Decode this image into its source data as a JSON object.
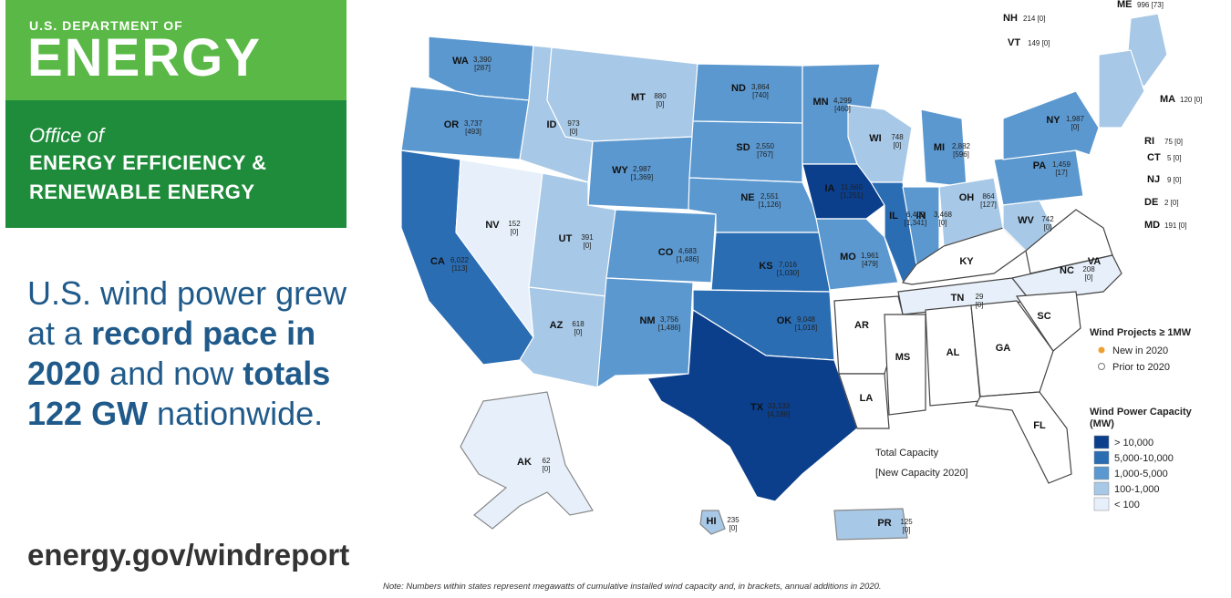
{
  "brand": {
    "department": "U.S. DEPARTMENT OF",
    "agency": "ENERGY",
    "office_of": "Office of",
    "office_line1": "ENERGY EFFICIENCY &",
    "office_line2": "RENEWABLE ENERGY",
    "color_light": "#5ab946",
    "color_dark": "#1e8c3a"
  },
  "headline": {
    "part1": "U.S. wind power grew at a ",
    "bold1": "record pace in 2020",
    "part2": " and now ",
    "bold2": "totals 122 GW",
    "part3": " nationwide."
  },
  "url": "energy.gov/windreport",
  "note": "Note: Numbers within states represent megawatts of cumulative installed wind capacity and, in brackets, annual additions in 2020.",
  "map": {
    "capacity_caption_line1": "Total Capacity",
    "capacity_caption_line2": "[New Capacity 2020]",
    "states": [
      {
        "abbr": "WA",
        "total": "3,390",
        "new": "[287]"
      },
      {
        "abbr": "OR",
        "total": "3,737",
        "new": "[493]"
      },
      {
        "abbr": "CA",
        "total": "6,022",
        "new": "[113]"
      },
      {
        "abbr": "ID",
        "total": "973",
        "new": "[0]"
      },
      {
        "abbr": "NV",
        "total": "152",
        "new": "[0]"
      },
      {
        "abbr": "MT",
        "total": "880",
        "new": "[0]"
      },
      {
        "abbr": "WY",
        "total": "2,987",
        "new": "[1,369]"
      },
      {
        "abbr": "UT",
        "total": "391",
        "new": "[0]"
      },
      {
        "abbr": "AZ",
        "total": "618",
        "new": "[0]"
      },
      {
        "abbr": "CO",
        "total": "4,683",
        "new": "[1,486]"
      },
      {
        "abbr": "NM",
        "total": "3,756",
        "new": "[1,486]"
      },
      {
        "abbr": "ND",
        "total": "3,864",
        "new": "[740]"
      },
      {
        "abbr": "SD",
        "total": "2,550",
        "new": "[767]"
      },
      {
        "abbr": "NE",
        "total": "2,551",
        "new": "[1,126]"
      },
      {
        "abbr": "KS",
        "total": "7,016",
        "new": "[1,030]"
      },
      {
        "abbr": "OK",
        "total": "9,048",
        "new": "[1,018]"
      },
      {
        "abbr": "TX",
        "total": "33,133",
        "new": "[4,186]"
      },
      {
        "abbr": "MN",
        "total": "4,299",
        "new": "[460]"
      },
      {
        "abbr": "IA",
        "total": "11,660",
        "new": "[1,251]"
      },
      {
        "abbr": "MO",
        "total": "1,961",
        "new": "[479]"
      },
      {
        "abbr": "WI",
        "total": "748",
        "new": "[0]"
      },
      {
        "abbr": "IL",
        "total": "6,409",
        "new": "[1,341]"
      },
      {
        "abbr": "MI",
        "total": "2,882",
        "new": "[596]"
      },
      {
        "abbr": "IN",
        "total": "3,468",
        "new": "[0]"
      },
      {
        "abbr": "OH",
        "total": "864",
        "new": "[127]"
      },
      {
        "abbr": "PA",
        "total": "1,459",
        "new": "[17]"
      },
      {
        "abbr": "NY",
        "total": "1,987",
        "new": "[0]"
      },
      {
        "abbr": "WV",
        "total": "742",
        "new": "[0]"
      },
      {
        "abbr": "VA",
        "total": "",
        "new": ""
      },
      {
        "abbr": "KY",
        "total": "",
        "new": ""
      },
      {
        "abbr": "TN",
        "total": "29",
        "new": "[0]"
      },
      {
        "abbr": "NC",
        "total": "208",
        "new": "[0]"
      },
      {
        "abbr": "SC",
        "total": "",
        "new": ""
      },
      {
        "abbr": "GA",
        "total": "",
        "new": ""
      },
      {
        "abbr": "AL",
        "total": "",
        "new": ""
      },
      {
        "abbr": "MS",
        "total": "",
        "new": ""
      },
      {
        "abbr": "AR",
        "total": "",
        "new": ""
      },
      {
        "abbr": "LA",
        "total": "",
        "new": ""
      },
      {
        "abbr": "FL",
        "total": "",
        "new": ""
      },
      {
        "abbr": "AK",
        "total": "62",
        "new": "[0]"
      },
      {
        "abbr": "HI",
        "total": "235",
        "new": "[0]"
      },
      {
        "abbr": "PR",
        "total": "125",
        "new": "[0]"
      }
    ],
    "ne_callouts": [
      {
        "abbr": "ME",
        "value": "996 [73]"
      },
      {
        "abbr": "NH",
        "value": "214 [0]"
      },
      {
        "abbr": "VT",
        "value": "149 [0]"
      },
      {
        "abbr": "MA",
        "value": "120 [0]"
      },
      {
        "abbr": "RI",
        "value": "75 [0]"
      },
      {
        "abbr": "CT",
        "value": "5 [0]"
      },
      {
        "abbr": "NJ",
        "value": "9 [0]"
      },
      {
        "abbr": "DE",
        "value": "2 [0]"
      },
      {
        "abbr": "MD",
        "value": "191 [0]"
      }
    ],
    "legend": {
      "projects_title": "Wind Projects ≥ 1MW",
      "new_label": "New in 2020",
      "prior_label": "Prior to 2020",
      "capacity_title_line1": "Wind Power Capacity",
      "capacity_title_line2": "(MW)",
      "bins": [
        {
          "label": "> 10,000",
          "color": "#0b3f8c"
        },
        {
          "label": "5,000-10,000",
          "color": "#2b6db3"
        },
        {
          "label": "1,000-5,000",
          "color": "#5b98cf"
        },
        {
          "label": "100-1,000",
          "color": "#a7c8e6"
        },
        {
          "label": "< 100",
          "color": "#e7f0fa"
        }
      ],
      "new_color": "#f0a030",
      "prior_color": "#ffffff"
    }
  }
}
